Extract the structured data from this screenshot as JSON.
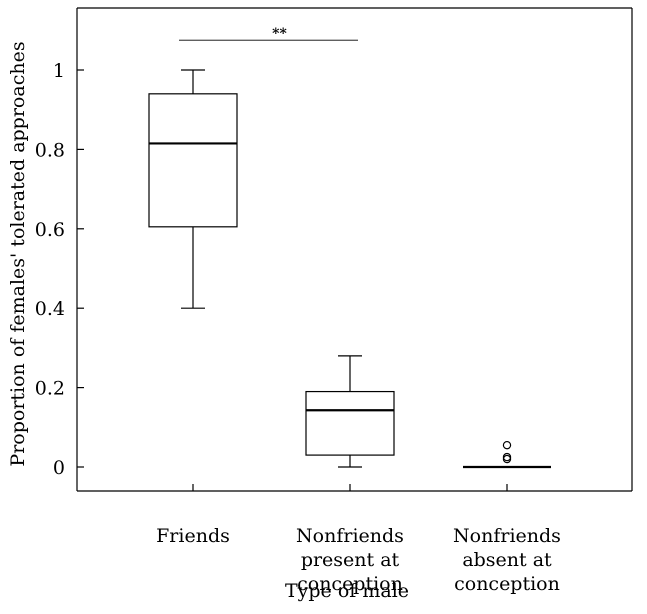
{
  "chart_data": {
    "type": "box",
    "xlabel": "Type of male",
    "ylabel": "Proportion of females' tolerated approaches",
    "ylim": [
      -0.06,
      1.16
    ],
    "yticks": [
      "0",
      "0.2",
      "0.4",
      "0.6",
      "0.8",
      "1"
    ],
    "categories": [
      [
        "Friends"
      ],
      [
        "Nonfriends",
        "present at",
        "conception"
      ],
      [
        "Nonfriends",
        "absent at",
        "conception"
      ]
    ],
    "boxes": [
      {
        "min": 0.4,
        "q1": 0.605,
        "median": 0.815,
        "q3": 0.94,
        "max": 1.0,
        "outliers": []
      },
      {
        "min": 0.0,
        "q1": 0.03,
        "median": 0.143,
        "q3": 0.19,
        "max": 0.28,
        "outliers": []
      },
      {
        "min": 0.0,
        "q1": 0.0,
        "median": 0.0,
        "q3": 0.0,
        "max": 0.0,
        "outliers": [
          0.055,
          0.025,
          0.02
        ]
      }
    ],
    "significance": {
      "from": 0,
      "to": 1,
      "y": 1.075,
      "label": "**"
    },
    "grid": false,
    "legend": "none"
  }
}
